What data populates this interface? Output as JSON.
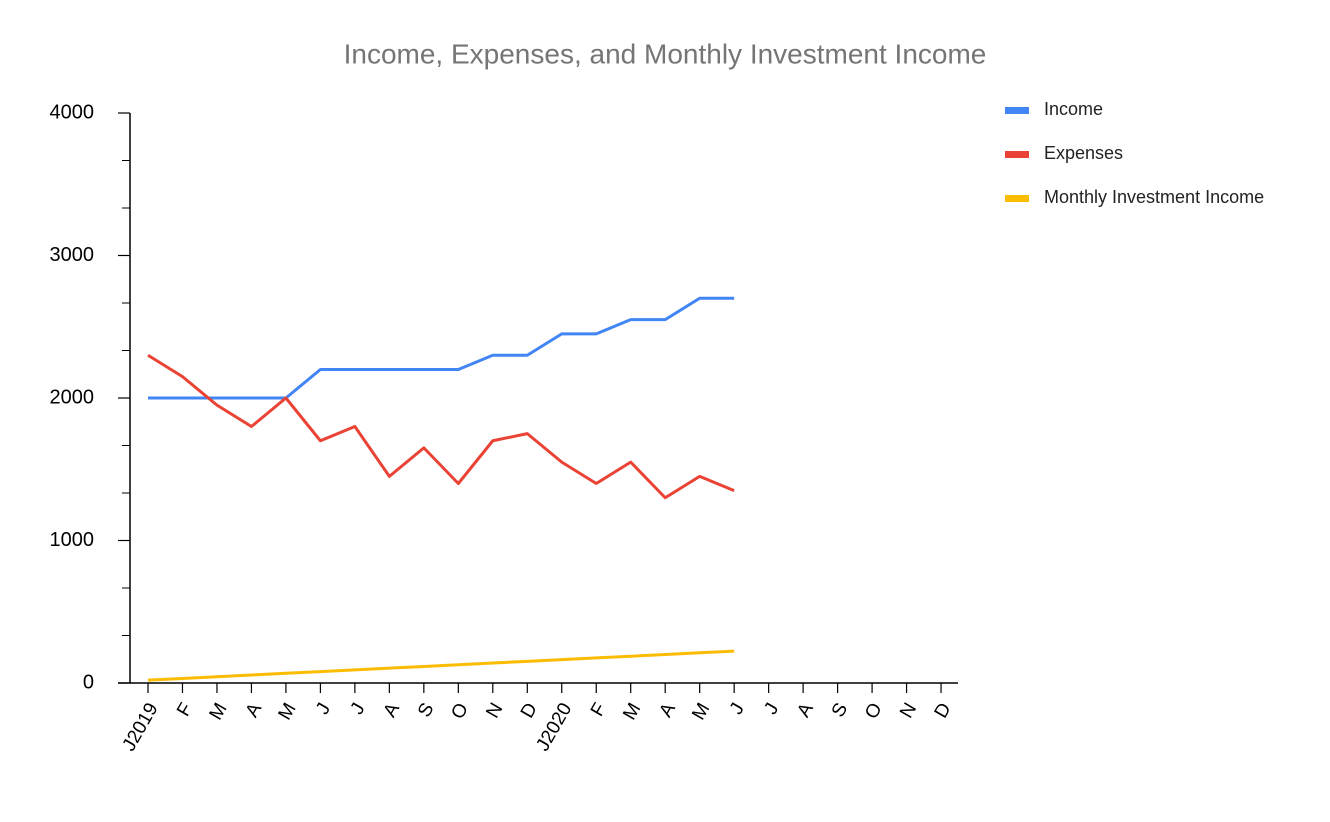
{
  "chart_data": {
    "type": "line",
    "title": "Income, Expenses, and Monthly Investment Income",
    "categories": [
      "J2019",
      "F",
      "M",
      "A",
      "M",
      "J",
      "J",
      "A",
      "S",
      "O",
      "N",
      "D",
      "J2020",
      "F",
      "M",
      "A",
      "M",
      "J",
      "J",
      "A",
      "S",
      "O",
      "N",
      "D"
    ],
    "series": [
      {
        "name": "Income",
        "color": "#4285f4",
        "values": [
          2000,
          2000,
          2000,
          2000,
          2000,
          2200,
          2200,
          2200,
          2200,
          2200,
          2300,
          2300,
          2450,
          2450,
          2550,
          2550,
          2700,
          2700,
          null,
          null,
          null,
          null,
          null,
          null
        ]
      },
      {
        "name": "Expenses",
        "color": "#ea4335",
        "values": [
          2300,
          2150,
          1950,
          1800,
          2000,
          1700,
          1800,
          1450,
          1650,
          1400,
          1700,
          1750,
          1550,
          1400,
          1550,
          1300,
          1450,
          1350,
          null,
          null,
          null,
          null,
          null,
          null
        ]
      },
      {
        "name": "Monthly Investment Income",
        "color": "#fbbc04",
        "values": [
          20,
          32,
          44,
          56,
          68,
          80,
          92,
          104,
          116,
          128,
          140,
          152,
          164,
          176,
          188,
          200,
          212,
          224,
          null,
          null,
          null,
          null,
          null,
          null
        ]
      }
    ],
    "ylim": [
      0,
      4000
    ],
    "yticks": [
      0,
      1000,
      2000,
      3000,
      4000
    ],
    "legend": "right"
  }
}
